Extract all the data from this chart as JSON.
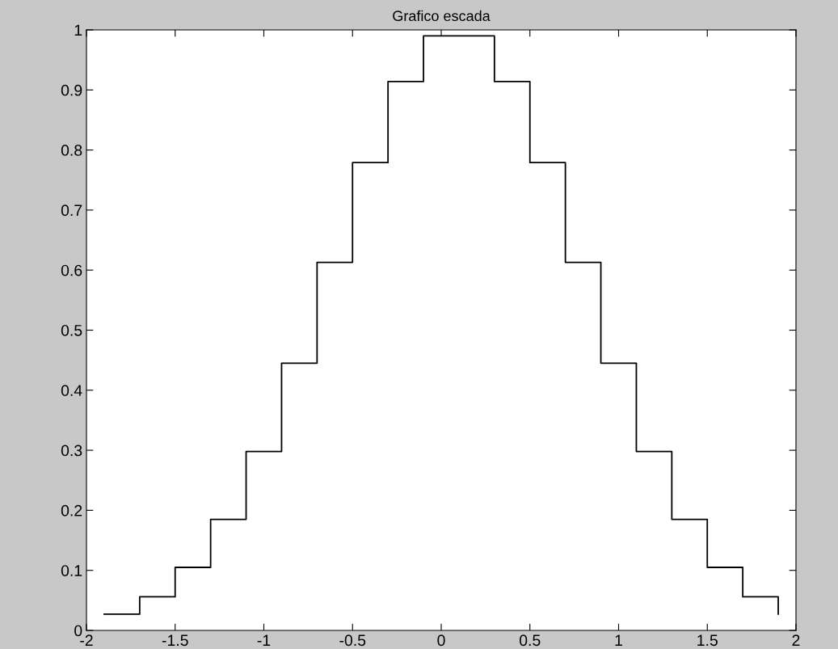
{
  "chart_data": {
    "type": "step",
    "title": "Grafico escada",
    "x": [
      -1.9,
      -1.7,
      -1.5,
      -1.3,
      -1.1,
      -0.9,
      -0.7,
      -0.5,
      -0.3,
      -0.1,
      0.1,
      0.3,
      0.5,
      0.7,
      0.9,
      1.1,
      1.3,
      1.5,
      1.7,
      1.9
    ],
    "series": [
      {
        "color": "#000000",
        "values": [
          0.027,
          0.056,
          0.105,
          0.185,
          0.298,
          0.445,
          0.613,
          0.779,
          0.914,
          0.99,
          0.99,
          0.914,
          0.779,
          0.613,
          0.445,
          0.298,
          0.185,
          0.105,
          0.056,
          0.027
        ]
      }
    ],
    "xlim": [
      -2,
      2
    ],
    "xticks": [
      -2,
      -1.5,
      -1,
      -0.5,
      0,
      0.5,
      1,
      1.5,
      2
    ],
    "ylim": [
      0,
      1
    ],
    "yticks": [
      0,
      0.1,
      0.2,
      0.3,
      0.4,
      0.5,
      0.6,
      0.7,
      0.8,
      0.9,
      1
    ],
    "grid": false
  }
}
